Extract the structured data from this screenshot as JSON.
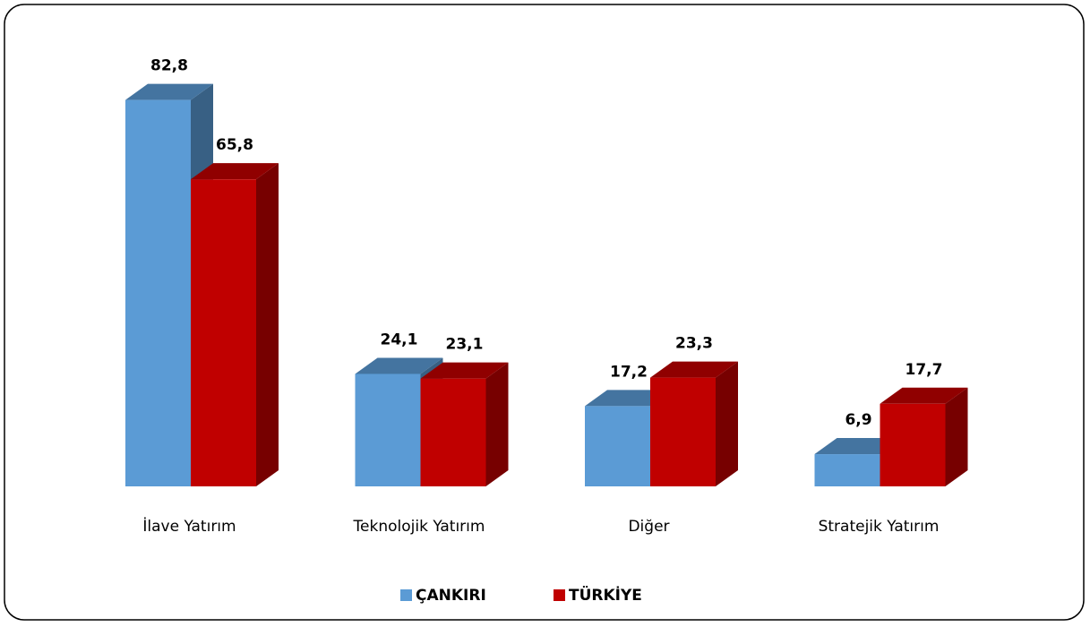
{
  "chart_data": {
    "type": "bar3d",
    "categories": [
      "İlave Yatırım",
      "Teknolojik Yatırım",
      "Diğer",
      "Stratejik Yatırım"
    ],
    "series": [
      {
        "name": "ÇANKIRI",
        "color": "#5b9bd5",
        "values": [
          82.8,
          24.1,
          17.2,
          6.9
        ],
        "value_labels": [
          "82,8",
          "24,1",
          "17,2",
          "6,9"
        ]
      },
      {
        "name": "TÜRKİYE",
        "color": "#c00000",
        "values": [
          65.8,
          23.1,
          23.3,
          17.7
        ],
        "value_labels": [
          "65,8",
          "23,1",
          "23,3",
          "17,7"
        ]
      }
    ],
    "legend": "bottom"
  }
}
